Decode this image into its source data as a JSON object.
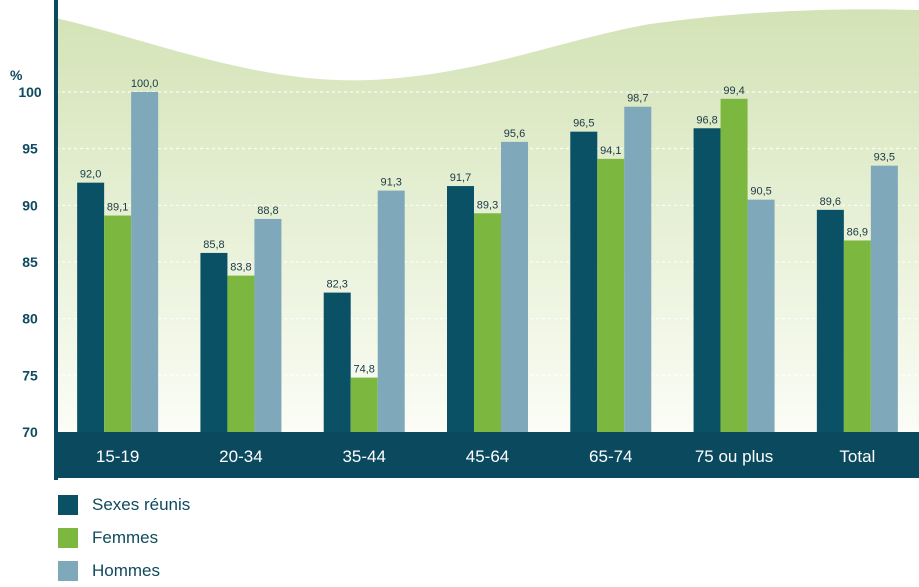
{
  "chart_data": {
    "type": "bar",
    "unit_label": "%",
    "categories": [
      "15-19",
      "20-34",
      "35-44",
      "45-64",
      "65-74",
      "75 ou plus",
      "Total"
    ],
    "series": [
      {
        "name": "Sexes réunis",
        "color": "#0b5166",
        "values": [
          92.0,
          85.8,
          82.3,
          91.7,
          96.5,
          96.8,
          89.6
        ],
        "labels": [
          "92,0",
          "85,8",
          "82,3",
          "91,7",
          "96,5",
          "96,8",
          "89,6"
        ]
      },
      {
        "name": "Femmes",
        "color": "#7cb840",
        "values": [
          89.1,
          83.8,
          74.8,
          89.3,
          94.1,
          99.4,
          86.9
        ],
        "labels": [
          "89,1",
          "83,8",
          "74,8",
          "89,3",
          "94,1",
          "99,4",
          "86,9"
        ]
      },
      {
        "name": "Hommes",
        "color": "#7fa8ba",
        "values": [
          100.0,
          88.8,
          91.3,
          95.6,
          98.7,
          90.5,
          93.5
        ],
        "labels": [
          "100,0",
          "88,8",
          "91,3",
          "95,6",
          "98,7",
          "90,5",
          "93,5"
        ]
      }
    ],
    "yticks": [
      70,
      75,
      80,
      85,
      90,
      95,
      100
    ],
    "ylim": [
      70,
      100
    ],
    "grid": true,
    "legend_position": "bottom-left"
  }
}
